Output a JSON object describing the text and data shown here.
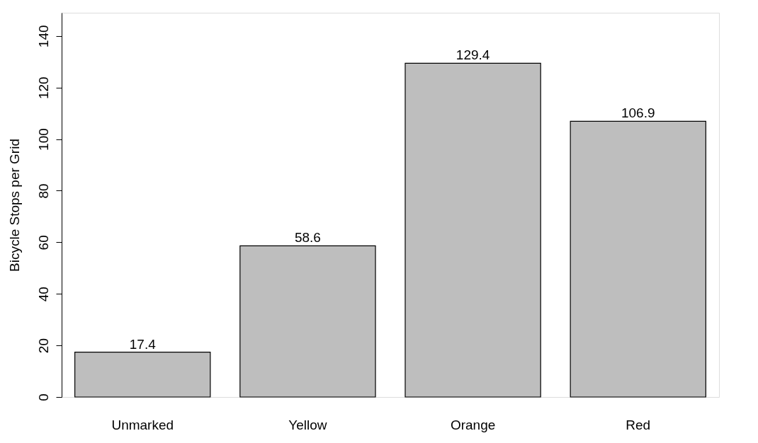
{
  "chart_data": {
    "type": "bar",
    "ylabel": "Bicycle Stops per Grid",
    "categories": [
      "Unmarked",
      "Yellow",
      "Orange",
      "Red"
    ],
    "values": [
      17.4,
      58.6,
      129.4,
      106.9
    ],
    "color": "#bebebe",
    "ylim": [
      0,
      149
    ],
    "yticks": [
      0,
      20,
      40,
      60,
      80,
      100,
      120,
      140
    ],
    "data_labels": true,
    "grid": false
  }
}
